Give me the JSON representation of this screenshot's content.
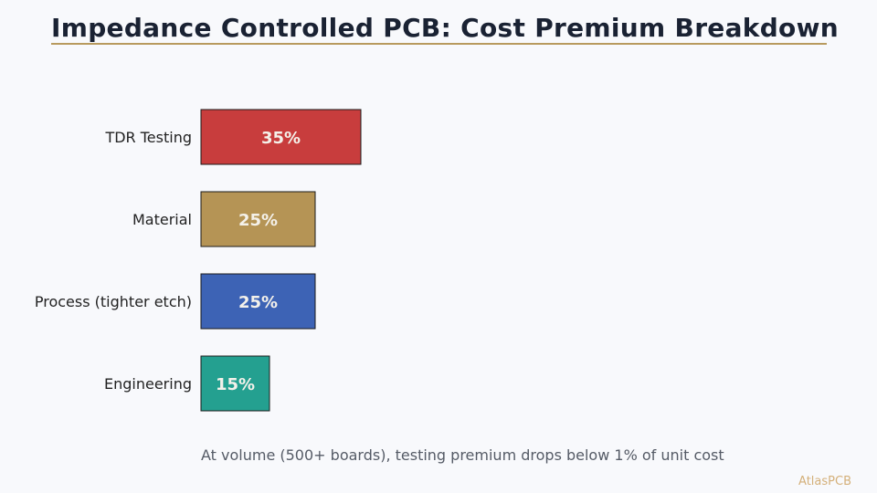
{
  "chart_data": {
    "type": "bar",
    "orientation": "horizontal",
    "title": "Impedance Controlled PCB: Cost Premium Breakdown",
    "categories": [
      "TDR Testing",
      "Material",
      "Process (tighter etch)",
      "Engineering"
    ],
    "values": [
      35,
      25,
      25,
      15
    ],
    "value_labels": [
      "35%",
      "25%",
      "25%",
      "15%"
    ],
    "colors": [
      "#c83d3d",
      "#b59455",
      "#3d63b5",
      "#24a090"
    ],
    "xlim": [
      0,
      35
    ],
    "grid": false,
    "annotation": "At volume (500+ boards), testing premium drops below 1% of unit cost"
  },
  "brand": "AtlasPCB"
}
